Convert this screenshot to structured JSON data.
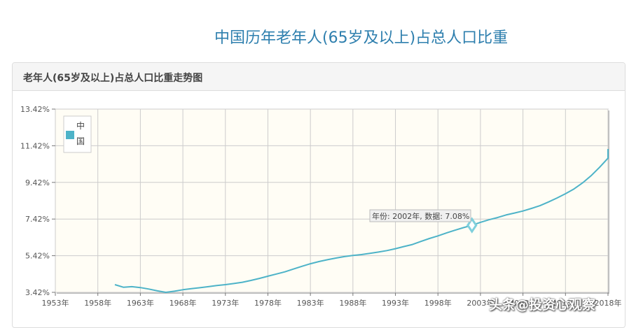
{
  "page": {
    "title": "中国历年老年人(65岁及以上)占总人口比重",
    "panel_title": "老年人(65岁及以上)占总人口比重走势图",
    "watermark": "头条@投资心观察"
  },
  "colors": {
    "title": "#2e7fae",
    "series": "#4db3c8",
    "plot_bg": "#fffdf5",
    "grid": "#cccccc"
  },
  "chart_data": {
    "type": "line",
    "xlim": [
      1953,
      2018
    ],
    "ylim": [
      3.42,
      13.42
    ],
    "x_ticks": [
      "1953年",
      "1958年",
      "1963年",
      "1968年",
      "1973年",
      "1978年",
      "1983年",
      "1988年",
      "1993年",
      "1998年",
      "2003年",
      "2008年",
      "2013年",
      "2018年"
    ],
    "x_tick_values": [
      1953,
      1958,
      1963,
      1968,
      1973,
      1978,
      1983,
      1988,
      1993,
      1998,
      2003,
      2008,
      2013,
      2018
    ],
    "y_ticks": [
      "3.42%",
      "5.42%",
      "7.42%",
      "9.42%",
      "11.42%",
      "13.42%"
    ],
    "y_tick_values": [
      3.42,
      5.42,
      7.42,
      9.42,
      11.42,
      13.42
    ],
    "legend": {
      "label": "中国",
      "placement": "top-left"
    },
    "grid": true,
    "series": [
      {
        "name": "中国",
        "x": [
          1960,
          1961,
          1962,
          1963,
          1964,
          1965,
          1966,
          1967,
          1968,
          1969,
          1970,
          1971,
          1972,
          1973,
          1974,
          1975,
          1976,
          1977,
          1978,
          1979,
          1980,
          1981,
          1982,
          1983,
          1984,
          1985,
          1986,
          1987,
          1988,
          1989,
          1990,
          1991,
          1992,
          1993,
          1994,
          1995,
          1996,
          1997,
          1998,
          1999,
          2000,
          2001,
          2002,
          2003,
          2004,
          2005,
          2006,
          2007,
          2008,
          2009,
          2010,
          2011,
          2012,
          2013,
          2014,
          2015,
          2016,
          2017,
          2018,
          2019
        ],
        "y": [
          3.84,
          3.7,
          3.73,
          3.68,
          3.6,
          3.5,
          3.42,
          3.48,
          3.56,
          3.62,
          3.67,
          3.73,
          3.79,
          3.84,
          3.9,
          3.97,
          4.07,
          4.18,
          4.3,
          4.42,
          4.54,
          4.69,
          4.84,
          4.98,
          5.1,
          5.2,
          5.29,
          5.37,
          5.43,
          5.48,
          5.55,
          5.62,
          5.7,
          5.8,
          5.92,
          6.03,
          6.2,
          6.36,
          6.5,
          6.66,
          6.81,
          6.95,
          7.08,
          7.24,
          7.38,
          7.5,
          7.64,
          7.75,
          7.86,
          8.0,
          8.15,
          8.35,
          8.57,
          8.8,
          9.06,
          9.39,
          9.78,
          10.24,
          10.74,
          11.24
        ]
      }
    ],
    "tooltip": {
      "label": "年份: 2002年, 数据: 7.08%",
      "x": 2002,
      "y": 7.08
    }
  }
}
